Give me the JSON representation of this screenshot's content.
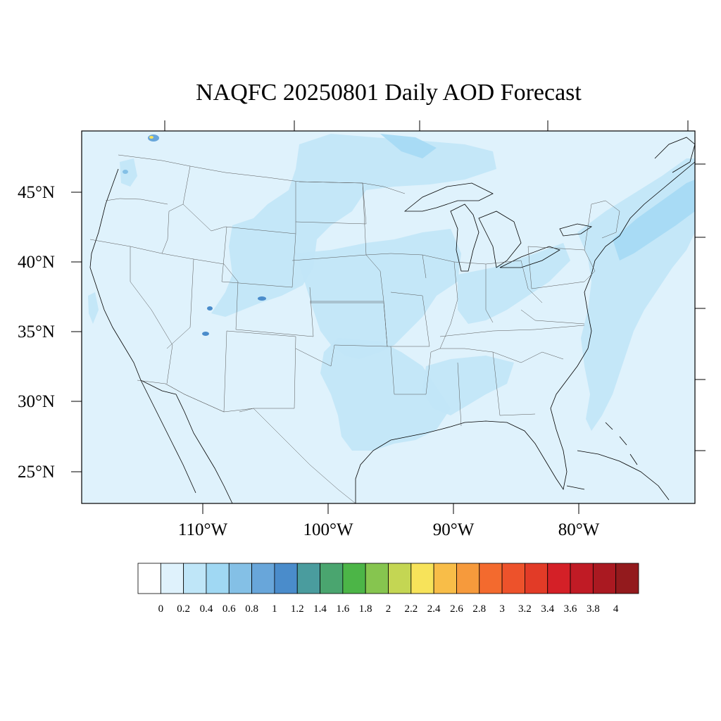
{
  "title": "NAQFC 20250801 Daily AOD Forecast",
  "map": {
    "lat_labels": [
      "45°N",
      "40°N",
      "35°N",
      "30°N",
      "25°N"
    ],
    "lon_labels": [
      "110°W",
      "100°W",
      "90°W",
      "80°W"
    ],
    "background_color": "#dff2fc",
    "plume_color": "#c2e6f8",
    "plume_color_dark": "#a6daf4"
  },
  "colorbar": {
    "labels": [
      "0",
      "0.2",
      "0.4",
      "0.6",
      "0.8",
      "1",
      "1.2",
      "1.4",
      "1.6",
      "1.8",
      "2",
      "2.2",
      "2.4",
      "2.6",
      "2.8",
      "3",
      "3.2",
      "3.4",
      "3.6",
      "3.8",
      "4"
    ],
    "colors": [
      "#ffffff",
      "#dff2fc",
      "#bfe6f8",
      "#a0d8f3",
      "#84c0e6",
      "#68a6da",
      "#4a8ccb",
      "#4a9c9e",
      "#4aa56f",
      "#4cb547",
      "#86c54f",
      "#c4d653",
      "#f7e35a",
      "#f8bd48",
      "#f69a3c",
      "#f36a2e",
      "#ed522b",
      "#e23b27",
      "#d42027",
      "#c01b25",
      "#aa1921",
      "#931a1d"
    ]
  }
}
